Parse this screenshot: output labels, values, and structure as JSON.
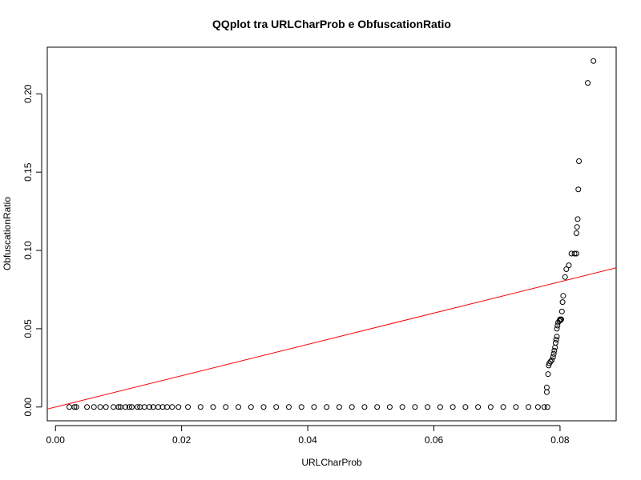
{
  "chart_data": {
    "type": "scatter",
    "title": "QQplot tra URLCharProb e ObfuscationRatio",
    "xlabel": "URLCharProb",
    "ylabel": "ObfuscationRatio",
    "xlim": [
      -0.0013,
      0.0889
    ],
    "ylim": [
      -0.0088,
      0.2298
    ],
    "x_ticks": [
      {
        "value": 0.0,
        "label": "0.00"
      },
      {
        "value": 0.02,
        "label": "0.02"
      },
      {
        "value": 0.04,
        "label": "0.04"
      },
      {
        "value": 0.06,
        "label": "0.06"
      },
      {
        "value": 0.08,
        "label": "0.08"
      }
    ],
    "y_ticks": [
      {
        "value": 0.0,
        "label": "0.00"
      },
      {
        "value": 0.05,
        "label": "0.05"
      },
      {
        "value": 0.1,
        "label": "0.10"
      },
      {
        "value": 0.15,
        "label": "0.15"
      },
      {
        "value": 0.2,
        "label": "0.20"
      }
    ],
    "grid": false,
    "reference_line": {
      "intercept": 0,
      "slope": 1,
      "color": "#ff0000"
    },
    "point_color": "#000000",
    "points": [
      [
        0.0022,
        0.0
      ],
      [
        0.003,
        0.0
      ],
      [
        0.0033,
        0.0
      ],
      [
        0.005,
        0.0
      ],
      [
        0.0061,
        0.0
      ],
      [
        0.0071,
        0.0
      ],
      [
        0.008,
        0.0
      ],
      [
        0.0092,
        0.0
      ],
      [
        0.01,
        0.0
      ],
      [
        0.0103,
        0.0
      ],
      [
        0.0111,
        0.0
      ],
      [
        0.0117,
        0.0
      ],
      [
        0.0121,
        0.0
      ],
      [
        0.013,
        0.0
      ],
      [
        0.0134,
        0.0
      ],
      [
        0.0141,
        0.0
      ],
      [
        0.0149,
        0.0
      ],
      [
        0.0155,
        0.0
      ],
      [
        0.0163,
        0.0
      ],
      [
        0.017,
        0.0
      ],
      [
        0.0177,
        0.0
      ],
      [
        0.0185,
        0.0
      ],
      [
        0.0195,
        0.0
      ],
      [
        0.021,
        0.0
      ],
      [
        0.023,
        0.0
      ],
      [
        0.025,
        0.0
      ],
      [
        0.027,
        0.0
      ],
      [
        0.029,
        0.0
      ],
      [
        0.031,
        0.0
      ],
      [
        0.033,
        0.0
      ],
      [
        0.035,
        0.0
      ],
      [
        0.037,
        0.0
      ],
      [
        0.039,
        0.0
      ],
      [
        0.041,
        0.0
      ],
      [
        0.043,
        0.0
      ],
      [
        0.045,
        0.0
      ],
      [
        0.047,
        0.0
      ],
      [
        0.049,
        0.0
      ],
      [
        0.051,
        0.0
      ],
      [
        0.053,
        0.0
      ],
      [
        0.055,
        0.0
      ],
      [
        0.057,
        0.0
      ],
      [
        0.059,
        0.0
      ],
      [
        0.061,
        0.0
      ],
      [
        0.063,
        0.0
      ],
      [
        0.065,
        0.0
      ],
      [
        0.067,
        0.0
      ],
      [
        0.069,
        0.0
      ],
      [
        0.071,
        0.0
      ],
      [
        0.073,
        0.0
      ],
      [
        0.075,
        0.0
      ],
      [
        0.0765,
        0.0
      ],
      [
        0.0775,
        0.0
      ],
      [
        0.078,
        0.0
      ],
      [
        0.0779,
        0.0095
      ],
      [
        0.0779,
        0.0125
      ],
      [
        0.0781,
        0.021
      ],
      [
        0.0782,
        0.0265
      ],
      [
        0.0783,
        0.028
      ],
      [
        0.0785,
        0.029
      ],
      [
        0.0787,
        0.03
      ],
      [
        0.0789,
        0.032
      ],
      [
        0.079,
        0.034
      ],
      [
        0.0791,
        0.036
      ],
      [
        0.0792,
        0.038
      ],
      [
        0.0793,
        0.041
      ],
      [
        0.0794,
        0.043
      ],
      [
        0.0795,
        0.045
      ],
      [
        0.0795,
        0.05
      ],
      [
        0.0796,
        0.052
      ],
      [
        0.0797,
        0.054
      ],
      [
        0.0799,
        0.055
      ],
      [
        0.08,
        0.056
      ],
      [
        0.0801,
        0.0555
      ],
      [
        0.0802,
        0.056
      ],
      [
        0.0803,
        0.061
      ],
      [
        0.0804,
        0.067
      ],
      [
        0.0805,
        0.071
      ],
      [
        0.0808,
        0.083
      ],
      [
        0.081,
        0.088
      ],
      [
        0.0814,
        0.0905
      ],
      [
        0.0818,
        0.098
      ],
      [
        0.0823,
        0.098
      ],
      [
        0.0826,
        0.098
      ],
      [
        0.0826,
        0.111
      ],
      [
        0.0827,
        0.115
      ],
      [
        0.0828,
        0.12
      ],
      [
        0.0829,
        0.139
      ],
      [
        0.083,
        0.157
      ],
      [
        0.0844,
        0.207
      ],
      [
        0.0853,
        0.221
      ]
    ]
  }
}
